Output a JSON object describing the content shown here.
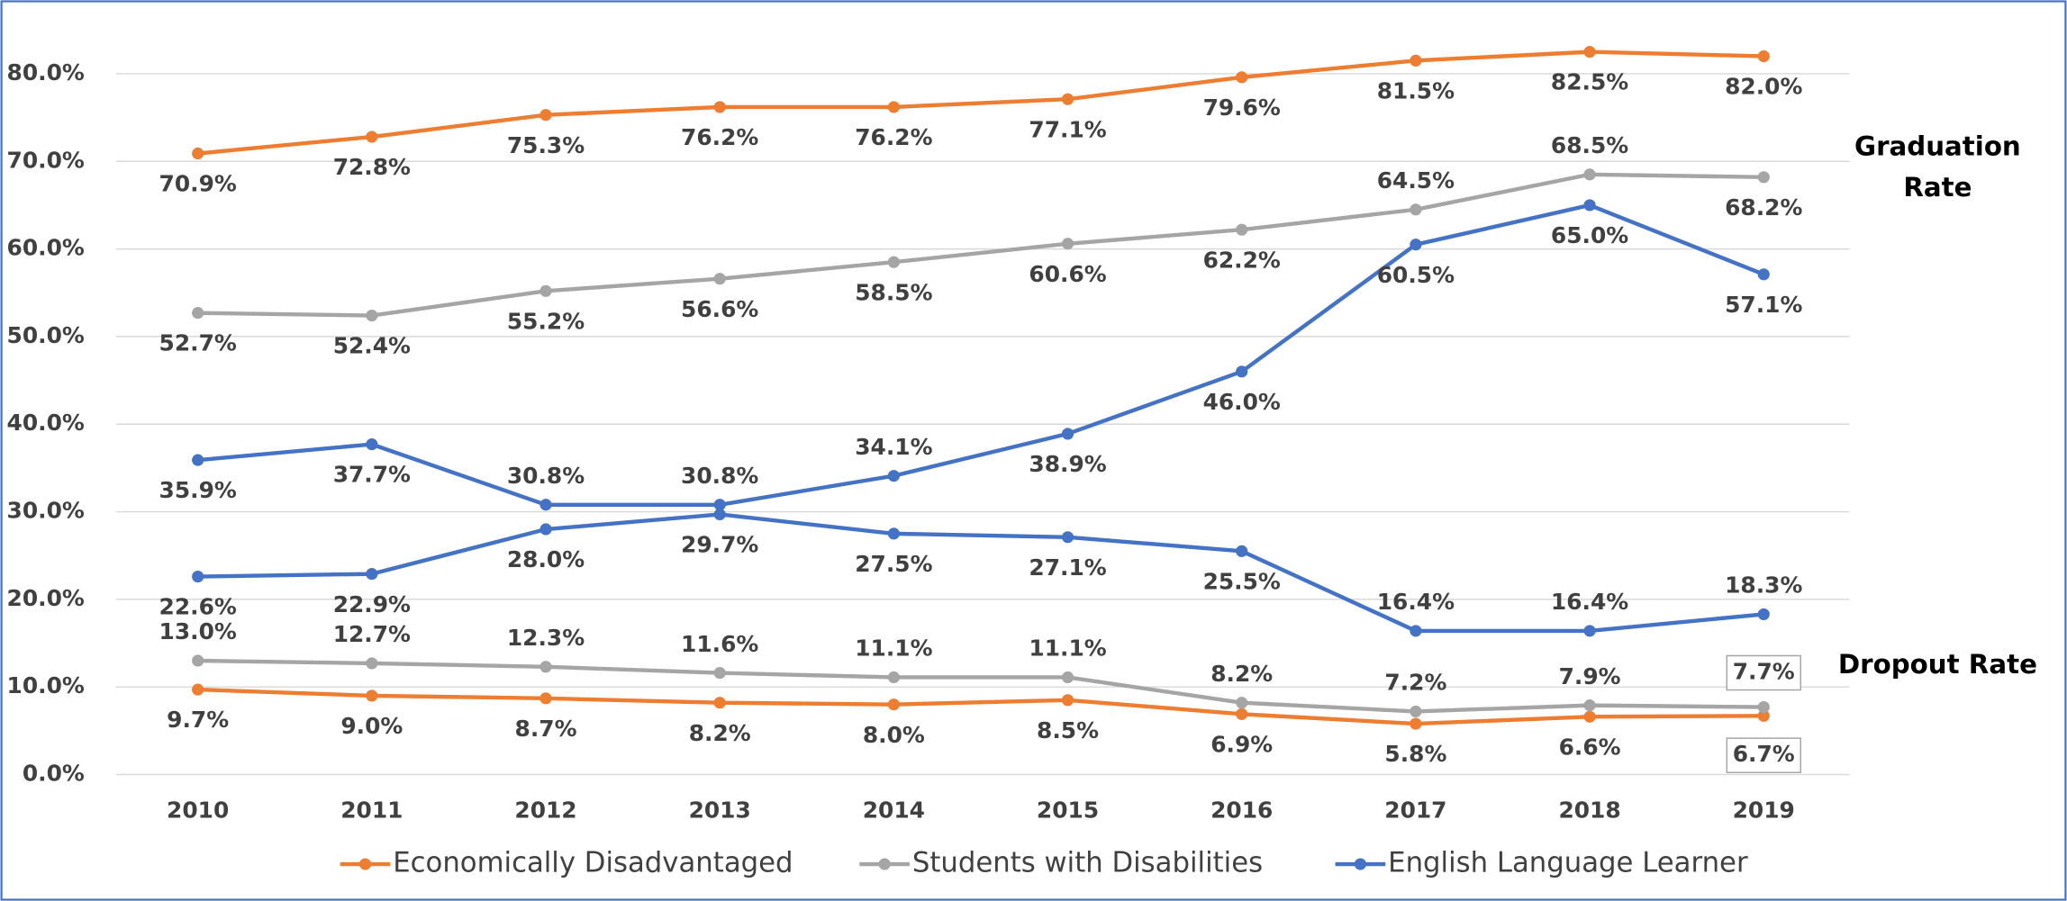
{
  "chart_data": {
    "type": "line",
    "categories": [
      "2010",
      "2011",
      "2012",
      "2013",
      "2014",
      "2015",
      "2016",
      "2017",
      "2018",
      "2019"
    ],
    "ylim": [
      0,
      80
    ],
    "yticks": [
      {
        "value": 0,
        "label": "0.0%"
      },
      {
        "value": 10,
        "label": "10.0%"
      },
      {
        "value": 20,
        "label": "20.0%"
      },
      {
        "value": 30,
        "label": "30.0%"
      },
      {
        "value": 40,
        "label": "40.0%"
      },
      {
        "value": 50,
        "label": "50.0%"
      },
      {
        "value": 60,
        "label": "60.0%"
      },
      {
        "value": 70,
        "label": "70.0%"
      },
      {
        "value": 80,
        "label": "80.0%"
      }
    ],
    "grid": true,
    "legend": "bottom",
    "annotations": [
      "Graduation Rate",
      "Dropout Rate"
    ],
    "series": [
      {
        "name": "Economically Disadvantaged",
        "color": "#ed7d31",
        "graduation": [
          70.9,
          72.8,
          75.3,
          76.2,
          76.2,
          77.1,
          79.6,
          81.5,
          82.5,
          82.0
        ],
        "graduation_labels": [
          "70.9%",
          "72.8%",
          "75.3%",
          "76.2%",
          "76.2%",
          "77.1%",
          "79.6%",
          "81.5%",
          "82.5%",
          "82.0%"
        ],
        "dropout": [
          9.7,
          9.0,
          8.7,
          8.2,
          8.0,
          8.5,
          6.9,
          5.8,
          6.6,
          6.7
        ],
        "dropout_labels": [
          "9.7%",
          "9.0%",
          "8.7%",
          "8.2%",
          "8.0%",
          "8.5%",
          "6.9%",
          "5.8%",
          "6.6%",
          "6.7%"
        ]
      },
      {
        "name": "Students with Disabilities",
        "color": "#a5a5a5",
        "graduation": [
          52.7,
          52.4,
          55.2,
          56.6,
          58.5,
          60.6,
          62.2,
          64.5,
          68.5,
          68.2
        ],
        "graduation_labels": [
          "52.7%",
          "52.4%",
          "55.2%",
          "56.6%",
          "58.5%",
          "60.6%",
          "62.2%",
          "64.5%",
          "68.5%",
          "68.2%"
        ],
        "dropout": [
          13.0,
          12.7,
          12.3,
          11.6,
          11.1,
          11.1,
          8.2,
          7.2,
          7.9,
          7.7
        ],
        "dropout_labels": [
          "13.0%",
          "12.7%",
          "12.3%",
          "11.6%",
          "11.1%",
          "11.1%",
          "8.2%",
          "7.2%",
          "7.9%",
          "7.7%"
        ]
      },
      {
        "name": "English Language Learner",
        "color": "#4472c4",
        "graduation": [
          35.9,
          37.7,
          30.8,
          30.8,
          34.1,
          38.9,
          46.0,
          60.5,
          65.0,
          57.1
        ],
        "graduation_labels": [
          "35.9%",
          "37.7%",
          "30.8%",
          "30.8%",
          "34.1%",
          "38.9%",
          "46.0%",
          "60.5%",
          "65.0%",
          "57.1%"
        ],
        "dropout": [
          22.6,
          22.9,
          28.0,
          29.7,
          27.5,
          27.1,
          25.5,
          16.4,
          16.4,
          18.3
        ],
        "dropout_labels": [
          "22.6%",
          "22.9%",
          "28.0%",
          "29.7%",
          "27.5%",
          "27.1%",
          "25.5%",
          "16.4%",
          "16.4%",
          "18.3%"
        ]
      }
    ]
  }
}
